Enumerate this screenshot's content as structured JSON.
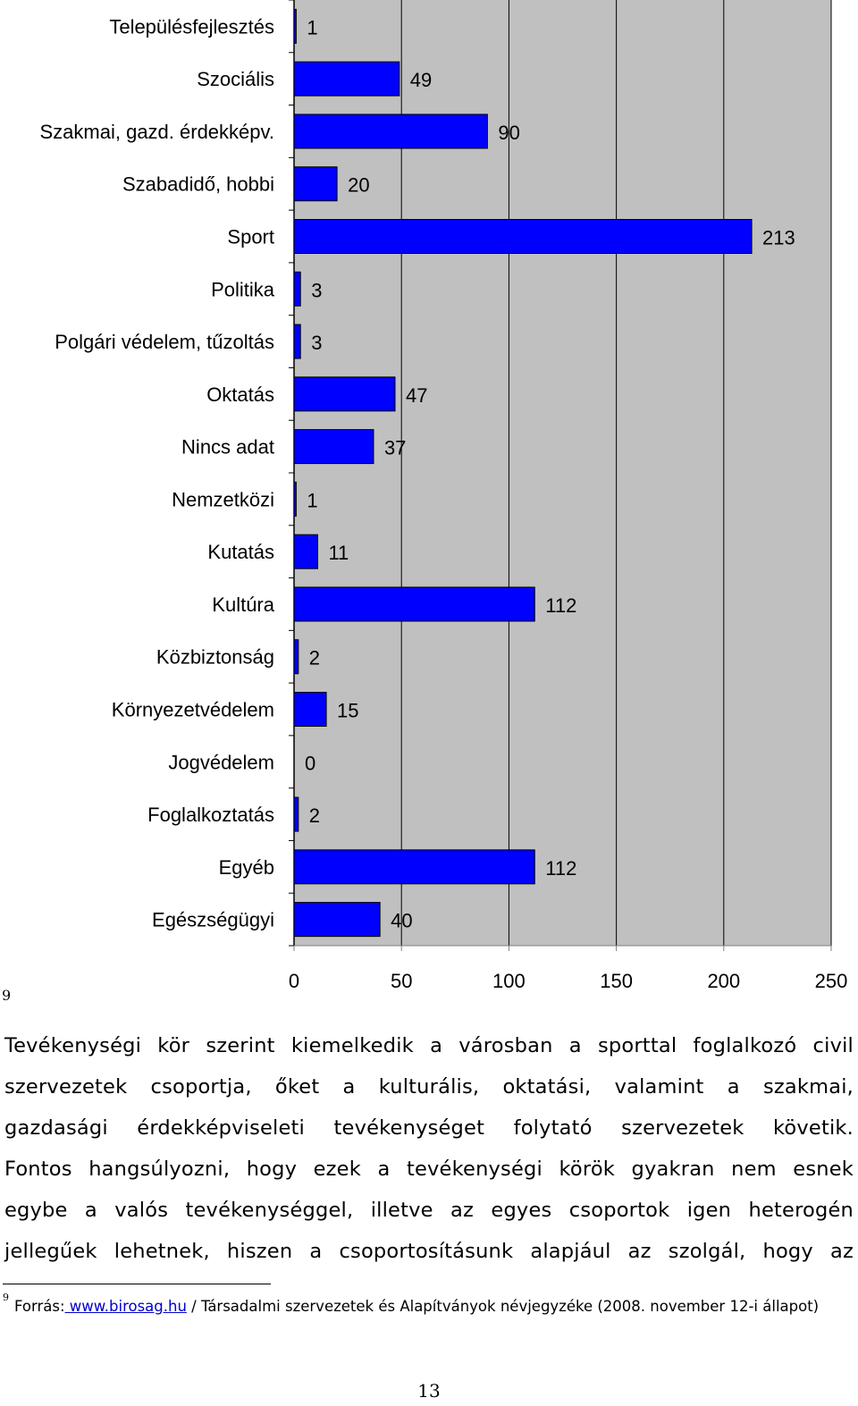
{
  "chart_data": {
    "type": "bar",
    "orientation": "horizontal",
    "categories": [
      "Településfejlesztés",
      "Szociális",
      "Szakmai, gazd. érdekképv.",
      "Szabadidő, hobbi",
      "Sport",
      "Politika",
      "Polgári védelem, tűzoltás",
      "Oktatás",
      "Nincs adat",
      "Nemzetközi",
      "Kutatás",
      "Kultúra",
      "Közbiztonság",
      "Környezetvédelem",
      "Jogvédelem",
      "Foglalkoztatás",
      "Egyéb",
      "Egészségügyi"
    ],
    "values": [
      1,
      49,
      90,
      20,
      213,
      3,
      3,
      47,
      37,
      1,
      11,
      112,
      2,
      15,
      0,
      2,
      112,
      40
    ],
    "xlim": [
      0,
      250
    ],
    "xticks": [
      "0",
      "50",
      "100",
      "150",
      "200",
      "250"
    ],
    "grid": true,
    "bar_color": "#0000ff",
    "plot_background": "#c0c0c0"
  },
  "footnote_marker": "9",
  "body_lines": [
    "Tevékenységi kör szerint kiemelkedik a városban a sporttal foglalkozó civil",
    "szervezetek csoportja, őket a kulturális, oktatási, valamint a szakmai,",
    "gazdasági érdekképviseleti tevékenységet folytató szervezetek követik.",
    "Fontos hangsúlyozni, hogy ezek a tevékenységi körök gyakran nem esnek",
    "egybe a valós tevékenységgel, illetve az egyes csoportok igen heterogén",
    "jellegűek lehetnek, hiszen a csoportosításunk alapjául az szolgál, hogy az"
  ],
  "footnote": {
    "number": "9",
    "prefix": "Forrás:",
    "link": " www.birosag.hu",
    "suffix": " / Társadalmi szervezetek és Alapítványok névjegyzéke (2008. november 12-i állapot)"
  },
  "page_number": "13"
}
